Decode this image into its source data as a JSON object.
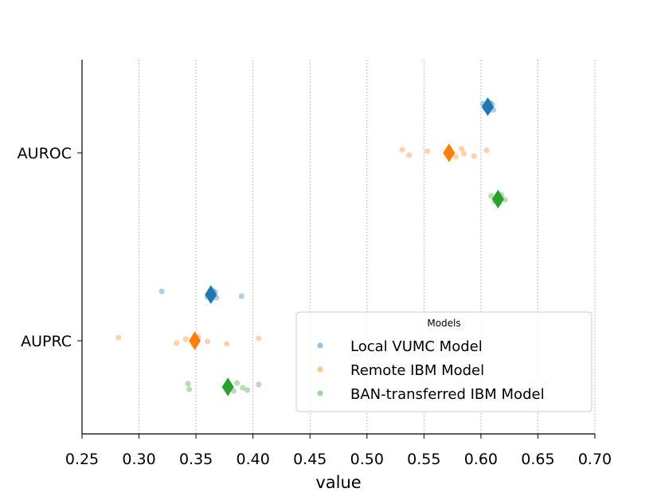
{
  "chart_data": {
    "type": "scatter",
    "subtype": "strip-with-mean-markers",
    "title": "",
    "xlabel": "value",
    "ylabel": "",
    "xlim": [
      0.25,
      0.7
    ],
    "xticks": [
      "0.25",
      "0.30",
      "0.35",
      "0.40",
      "0.45",
      "0.50",
      "0.55",
      "0.60",
      "0.65",
      "0.70"
    ],
    "categories": [
      "AUROC",
      "AUPRC"
    ],
    "grid": "vertical dashed",
    "legend": {
      "title": "Models",
      "placement": "lower-right"
    },
    "series": [
      {
        "name": "Local VUMC Model",
        "color": "#1f77b4",
        "points": {
          "AUROC": [
            0.602,
            0.604,
            0.606,
            0.607,
            0.608,
            0.609,
            0.611,
            0.61,
            0.605,
            0.603
          ],
          "AUPRC": [
            0.32,
            0.36,
            0.362,
            0.364,
            0.365,
            0.366,
            0.368,
            0.367,
            0.39,
            0.361
          ]
        },
        "means": {
          "AUROC": 0.606,
          "AUPRC": 0.363
        }
      },
      {
        "name": "Remote IBM Model",
        "color": "#ff7f0e",
        "points": {
          "AUROC": [
            0.531,
            0.537,
            0.553,
            0.578,
            0.583,
            0.585,
            0.594,
            0.605
          ],
          "AUPRC": [
            0.282,
            0.333,
            0.341,
            0.348,
            0.352,
            0.36,
            0.377,
            0.405
          ]
        },
        "means": {
          "AUROC": 0.572,
          "AUPRC": 0.349
        }
      },
      {
        "name": "BAN-transferred IBM Model",
        "color": "#2ca02c",
        "points": {
          "AUROC": [
            0.609,
            0.612,
            0.614,
            0.616,
            0.618,
            0.621
          ],
          "AUPRC": [
            0.343,
            0.344,
            0.379,
            0.383,
            0.386,
            0.391,
            0.395,
            0.405
          ]
        },
        "means": {
          "AUROC": 0.615,
          "AUPRC": 0.378
        }
      }
    ]
  }
}
